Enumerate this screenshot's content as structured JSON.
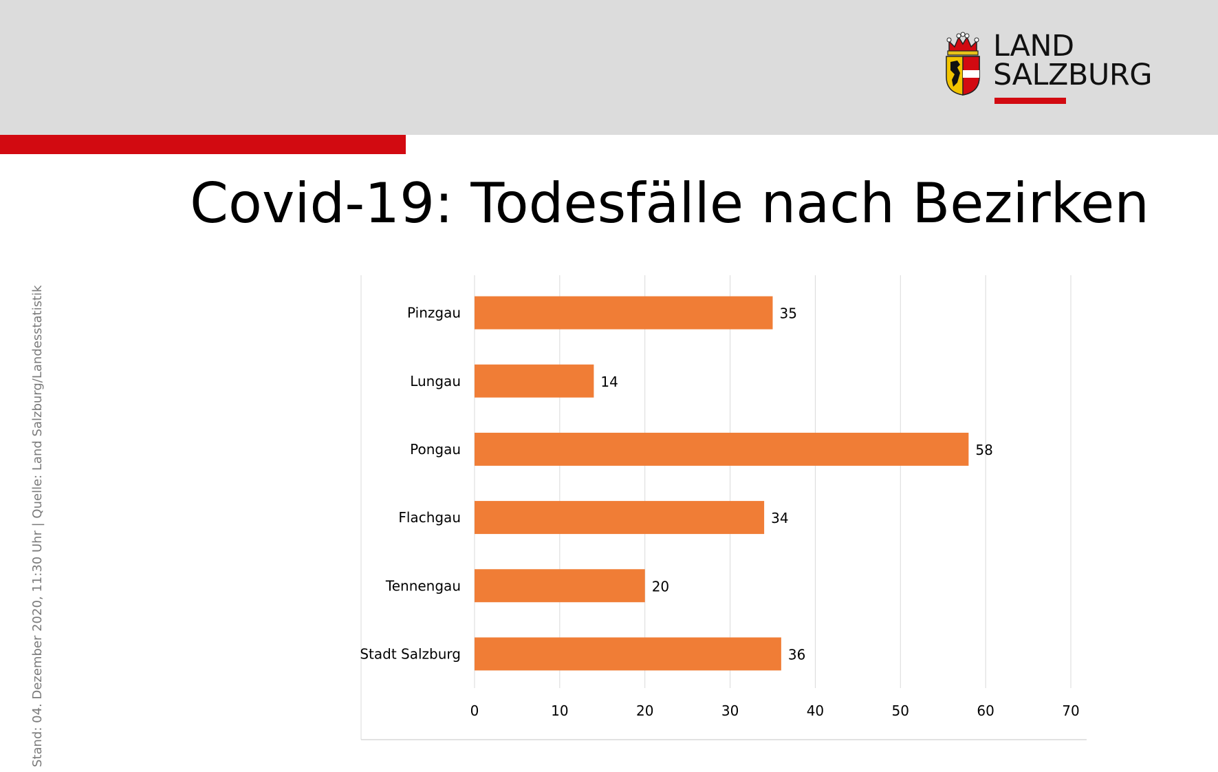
{
  "header": {
    "logo": {
      "line1": "LAND",
      "line2": "SALZBURG",
      "crest_icon": "salzburg-coat-of-arms-icon",
      "accent_color": "#d20a11"
    },
    "band_color": "#dcdcdc"
  },
  "page_title": "Covid-19: Todesfälle nach Bezirken",
  "side_note": "Stand: 04. Dezember 2020, 11:30 Uhr  |  Quelle: Land Salzburg/Landesstatistik",
  "chart_data": {
    "type": "bar",
    "orientation": "horizontal",
    "categories": [
      "Pinzgau",
      "Lungau",
      "Pongau",
      "Flachgau",
      "Tennengau",
      "Stadt Salzburg"
    ],
    "values": [
      35,
      14,
      58,
      34,
      20,
      36
    ],
    "data_labels": [
      "35",
      "14",
      "58",
      "34",
      "20",
      "36"
    ],
    "xlim": [
      0,
      70
    ],
    "xticks": [
      "0",
      "10",
      "20",
      "30",
      "40",
      "50",
      "60",
      "70"
    ],
    "xlabel": "",
    "ylabel": "",
    "grid": "vertical",
    "legend": "none",
    "bar_color": "#f07d36",
    "grid_color": "#d9d9d9"
  }
}
